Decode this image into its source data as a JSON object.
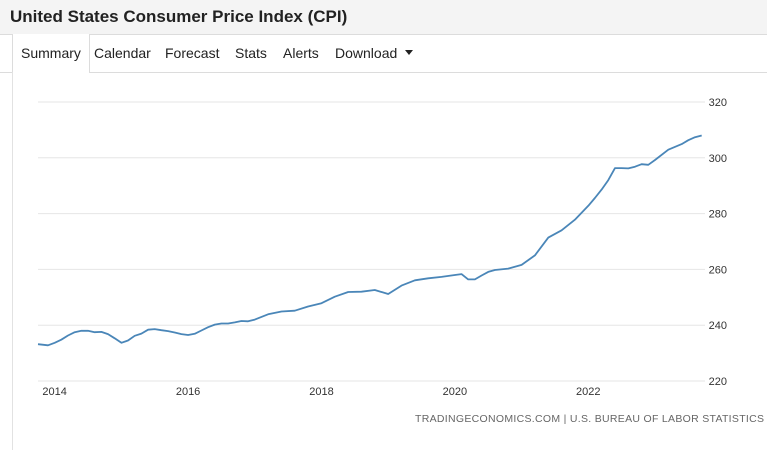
{
  "title": "United States Consumer Price Index (CPI)",
  "tabs": [
    {
      "label": "Summary",
      "active": true
    },
    {
      "label": "Calendar"
    },
    {
      "label": "Forecast"
    },
    {
      "label": "Stats"
    },
    {
      "label": "Alerts"
    },
    {
      "label": "Download",
      "dropdown": true
    }
  ],
  "source": "TRADINGECONOMICS.COM | U.S. BUREAU OF LABOR STATISTICS",
  "colors": {
    "line": "#4a86b8",
    "grid": "#e6e6e6",
    "axis_text": "#333333"
  },
  "chart_data": {
    "type": "line",
    "ylim": [
      220,
      320
    ],
    "yticks": [
      220,
      240,
      260,
      280,
      300,
      320
    ],
    "xticks": [
      "2014",
      "2016",
      "2018",
      "2020",
      "2022"
    ],
    "xlim": [
      2013.75,
      2023.75
    ],
    "grid": true,
    "y_axis_position": "right",
    "series": [
      {
        "x": [
          2013.75,
          2013.9,
          2014.0,
          2014.1,
          2014.2,
          2014.3,
          2014.4,
          2014.5,
          2014.6,
          2014.7,
          2014.8,
          2014.9,
          2015.0,
          2015.1,
          2015.2,
          2015.3,
          2015.4,
          2015.5,
          2015.6,
          2015.7,
          2015.8,
          2015.9,
          2016.0,
          2016.1,
          2016.2,
          2016.3,
          2016.4,
          2016.5,
          2016.6,
          2016.7,
          2016.8,
          2016.9,
          2017.0,
          2017.2,
          2017.4,
          2017.6,
          2017.8,
          2018.0,
          2018.2,
          2018.4,
          2018.6,
          2018.8,
          2019.0,
          2019.2,
          2019.4,
          2019.6,
          2019.8,
          2020.0,
          2020.1,
          2020.2,
          2020.3,
          2020.4,
          2020.5,
          2020.6,
          2020.8,
          2021.0,
          2021.2,
          2021.4,
          2021.6,
          2021.8,
          2022.0,
          2022.1,
          2022.2,
          2022.3,
          2022.4,
          2022.5,
          2022.6,
          2022.7,
          2022.8,
          2022.9,
          2023.0,
          2023.2,
          2023.4,
          2023.5,
          2023.6,
          2023.7
        ],
        "y": [
          233.2,
          232.8,
          233.7,
          234.8,
          236.3,
          237.5,
          238.0,
          238.0,
          237.5,
          237.6,
          236.8,
          235.3,
          233.7,
          234.5,
          236.2,
          237.0,
          238.4,
          238.6,
          238.2,
          237.9,
          237.4,
          236.8,
          236.5,
          236.9,
          238.1,
          239.3,
          240.2,
          240.6,
          240.6,
          241.0,
          241.5,
          241.4,
          242.0,
          243.9,
          244.9,
          245.2,
          246.7,
          247.9,
          250.2,
          251.9,
          252.0,
          252.6,
          251.2,
          254.2,
          256.1,
          256.8,
          257.3,
          258.0,
          258.3,
          256.4,
          256.4,
          257.8,
          259.1,
          259.8,
          260.3,
          261.6,
          265.0,
          271.4,
          274.0,
          277.8,
          282.8,
          285.6,
          288.6,
          292.0,
          296.3,
          296.3,
          296.2,
          296.8,
          297.7,
          297.5,
          299.2,
          302.9,
          304.9,
          306.3,
          307.4,
          308.0
        ]
      }
    ]
  }
}
